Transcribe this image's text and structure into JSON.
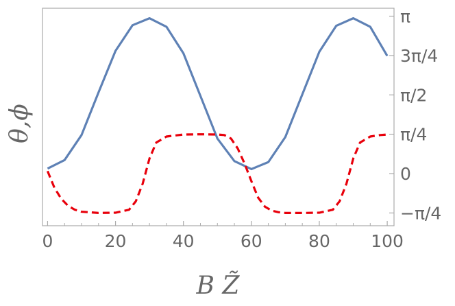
{
  "chart_data": {
    "type": "line",
    "title": "",
    "xlabel": "B Z̃",
    "ylabel": "θ,ϕ",
    "xlim": [
      -1.5,
      102
    ],
    "ylim": [
      -1.04,
      3.3
    ],
    "grid": false,
    "x_ticks": [
      {
        "value": 0,
        "label": "0"
      },
      {
        "value": 20,
        "label": "20"
      },
      {
        "value": 40,
        "label": "40"
      },
      {
        "value": 60,
        "label": "60"
      },
      {
        "value": 80,
        "label": "80"
      },
      {
        "value": 100,
        "label": "100"
      }
    ],
    "y_ticks_right": [
      {
        "value": 3.1416,
        "label": "π"
      },
      {
        "value": 2.3562,
        "label": "3π/4"
      },
      {
        "value": 1.5708,
        "label": "π/2"
      },
      {
        "value": 0.7854,
        "label": "π/4"
      },
      {
        "value": 0,
        "label": "0"
      },
      {
        "value": -0.7854,
        "label": "−π/4"
      }
    ],
    "series": [
      {
        "style": "solid",
        "color": "#5e81b5",
        "x": [
          0,
          5,
          10,
          15,
          20,
          25,
          30,
          35,
          40,
          45,
          50,
          55,
          60,
          65,
          70,
          75,
          80,
          85,
          90,
          95,
          100
        ],
        "y": [
          0.1,
          0.27,
          0.77,
          1.62,
          2.45,
          2.96,
          3.1,
          2.93,
          2.4,
          1.55,
          0.7,
          0.25,
          0.09,
          0.23,
          0.73,
          1.58,
          2.43,
          2.95,
          3.1,
          2.93,
          2.35
        ]
      },
      {
        "style": "dashed",
        "color": "#e8000b",
        "x": [
          0,
          2,
          4,
          6,
          8,
          10,
          15,
          20,
          24,
          26,
          28,
          30,
          32,
          35,
          40,
          45,
          50,
          52,
          54,
          56,
          58,
          60,
          62,
          64,
          66,
          68,
          70,
          75,
          80,
          84,
          86,
          88,
          90,
          92,
          95,
          98,
          100
        ],
        "y": [
          0.05,
          -0.28,
          -0.5,
          -0.64,
          -0.72,
          -0.76,
          -0.785,
          -0.78,
          -0.72,
          -0.55,
          -0.2,
          0.3,
          0.62,
          0.74,
          0.78,
          0.785,
          0.78,
          0.77,
          0.7,
          0.5,
          0.2,
          -0.15,
          -0.48,
          -0.66,
          -0.74,
          -0.77,
          -0.785,
          -0.785,
          -0.78,
          -0.72,
          -0.55,
          -0.2,
          0.3,
          0.62,
          0.74,
          0.77,
          0.78
        ]
      }
    ]
  }
}
